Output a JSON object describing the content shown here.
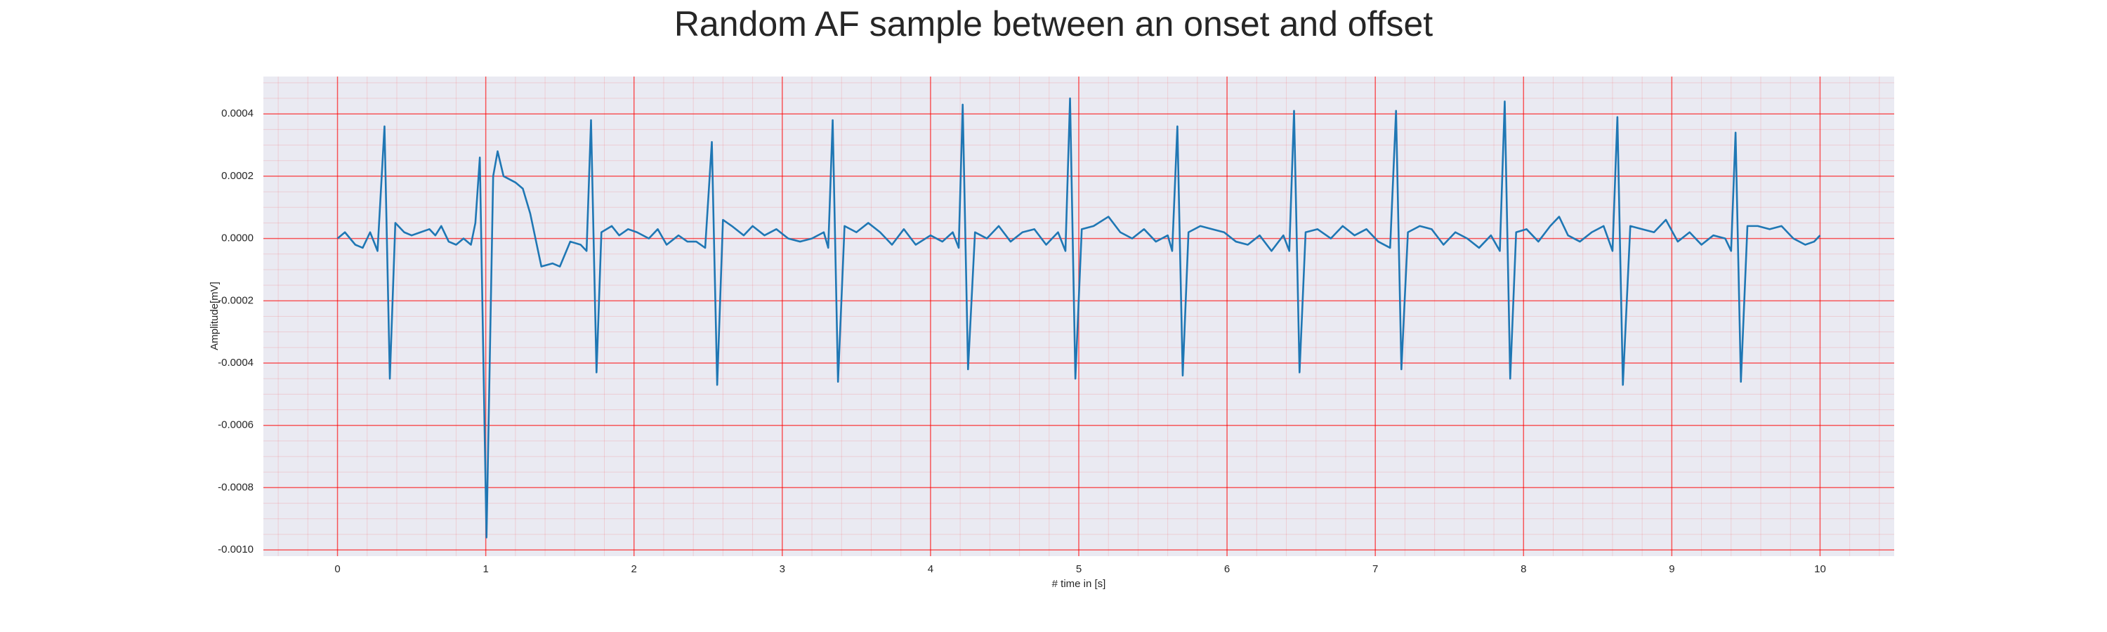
{
  "chart_data": {
    "type": "line",
    "title": "Random AF sample between an onset and offset",
    "xlabel": "# time in [s]",
    "ylabel": "Amplitude[mV]",
    "color": "#1f77b4",
    "grid": true,
    "grid_color": "#ff0000",
    "background": "#eaeaf2",
    "xlim": [
      -0.5,
      10.5
    ],
    "xticks": [
      0,
      1,
      2,
      3,
      4,
      5,
      6,
      7,
      8,
      9,
      10
    ],
    "ylim": [
      -0.00102,
      0.00052
    ],
    "yticks": [
      {
        "value": 0.0004,
        "label": "0.0004"
      },
      {
        "value": 0.0002,
        "label": "0.0002"
      },
      {
        "value": 0,
        "label": "0.0000"
      },
      {
        "value": -0.0002,
        "label": "-0.0002"
      },
      {
        "value": -0.0004,
        "label": "-0.0004"
      },
      {
        "value": -0.0006,
        "label": "-0.0006"
      },
      {
        "value": -0.0008,
        "label": "-0.0008"
      },
      {
        "value": -0.001,
        "label": "-0.0010"
      }
    ],
    "x": [
      0,
      0.05,
      0.12,
      0.17,
      0.22,
      0.27,
      0.317,
      0.353,
      0.39,
      0.45,
      0.5,
      0.56,
      0.62,
      0.66,
      0.7,
      0.75,
      0.8,
      0.85,
      0.9,
      0.93,
      0.96,
      1.005,
      1.05,
      1.08,
      1.12,
      1.2,
      1.25,
      1.3,
      1.375,
      1.45,
      1.5,
      1.57,
      1.64,
      1.68,
      1.71,
      1.747,
      1.78,
      1.85,
      1.9,
      1.96,
      2.02,
      2.1,
      2.16,
      2.22,
      2.3,
      2.36,
      2.42,
      2.48,
      2.525,
      2.561,
      2.6,
      2.66,
      2.74,
      2.8,
      2.88,
      2.96,
      3.04,
      3.12,
      3.2,
      3.28,
      3.31,
      3.34,
      3.376,
      3.42,
      3.5,
      3.58,
      3.66,
      3.74,
      3.82,
      3.9,
      4.0,
      4.08,
      4.15,
      4.19,
      4.217,
      4.253,
      4.3,
      4.38,
      4.46,
      4.54,
      4.62,
      4.7,
      4.78,
      4.86,
      4.91,
      4.941,
      4.977,
      5.02,
      5.1,
      5.2,
      5.28,
      5.36,
      5.44,
      5.52,
      5.6,
      5.63,
      5.665,
      5.701,
      5.74,
      5.82,
      5.9,
      5.98,
      6.06,
      6.14,
      6.22,
      6.3,
      6.38,
      6.42,
      6.452,
      6.489,
      6.53,
      6.61,
      6.7,
      6.78,
      6.86,
      6.94,
      7.02,
      7.1,
      7.14,
      7.176,
      7.22,
      7.3,
      7.38,
      7.46,
      7.54,
      7.62,
      7.7,
      7.78,
      7.84,
      7.873,
      7.91,
      7.95,
      8.02,
      8.1,
      8.18,
      8.24,
      8.3,
      8.38,
      8.46,
      8.54,
      8.6,
      8.633,
      8.67,
      8.72,
      8.8,
      8.88,
      8.96,
      9.04,
      9.12,
      9.2,
      9.28,
      9.36,
      9.4,
      9.43,
      9.466,
      9.51,
      9.58,
      9.66,
      9.74,
      9.82,
      9.9,
      9.96,
      10.0
    ],
    "values": [
      0,
      2e-05,
      -2e-05,
      -3e-05,
      2e-05,
      -4e-05,
      0.00036,
      -0.00045,
      5e-05,
      2e-05,
      1e-05,
      2e-05,
      3e-05,
      1e-05,
      4e-05,
      -1e-05,
      -2e-05,
      0,
      -2e-05,
      5e-05,
      0.00026,
      -0.00096,
      0.0002,
      0.00028,
      0.0002,
      0.00018,
      0.00016,
      8e-05,
      -9e-05,
      -8e-05,
      -9e-05,
      -1e-05,
      -2e-05,
      -4e-05,
      0.00038,
      -0.00043,
      2e-05,
      4e-05,
      1e-05,
      3e-05,
      2e-05,
      0,
      3e-05,
      -2e-05,
      1e-05,
      -1e-05,
      -1e-05,
      -3e-05,
      0.00031,
      -0.00047,
      6e-05,
      4e-05,
      1e-05,
      4e-05,
      1e-05,
      3e-05,
      0,
      -1e-05,
      0,
      2e-05,
      -3e-05,
      0.00038,
      -0.00046,
      4e-05,
      2e-05,
      5e-05,
      2e-05,
      -2e-05,
      3e-05,
      -2e-05,
      1e-05,
      -1e-05,
      2e-05,
      -3e-05,
      0.00043,
      -0.00042,
      2e-05,
      0,
      4e-05,
      -1e-05,
      2e-05,
      3e-05,
      -2e-05,
      2e-05,
      -4e-05,
      0.00045,
      -0.00045,
      3e-05,
      4e-05,
      7e-05,
      2e-05,
      0,
      3e-05,
      -1e-05,
      1e-05,
      -4e-05,
      0.00036,
      -0.00044,
      2e-05,
      4e-05,
      3e-05,
      2e-05,
      -1e-05,
      -2e-05,
      1e-05,
      -4e-05,
      1e-05,
      -4e-05,
      0.00041,
      -0.00043,
      2e-05,
      3e-05,
      0,
      4e-05,
      1e-05,
      3e-05,
      -1e-05,
      -3e-05,
      0.00041,
      -0.00042,
      2e-05,
      4e-05,
      3e-05,
      -2e-05,
      2e-05,
      0,
      -3e-05,
      1e-05,
      -4e-05,
      0.00044,
      -0.00045,
      2e-05,
      3e-05,
      -1e-05,
      4e-05,
      7e-05,
      1e-05,
      -1e-05,
      2e-05,
      4e-05,
      -4e-05,
      0.00039,
      -0.00047,
      4e-05,
      3e-05,
      2e-05,
      6e-05,
      -1e-05,
      2e-05,
      -2e-05,
      1e-05,
      0,
      -4e-05,
      0.00034,
      -0.00046,
      4e-05,
      4e-05,
      3e-05,
      4e-05,
      0,
      -2e-05,
      -1e-05,
      1e-05
    ]
  }
}
